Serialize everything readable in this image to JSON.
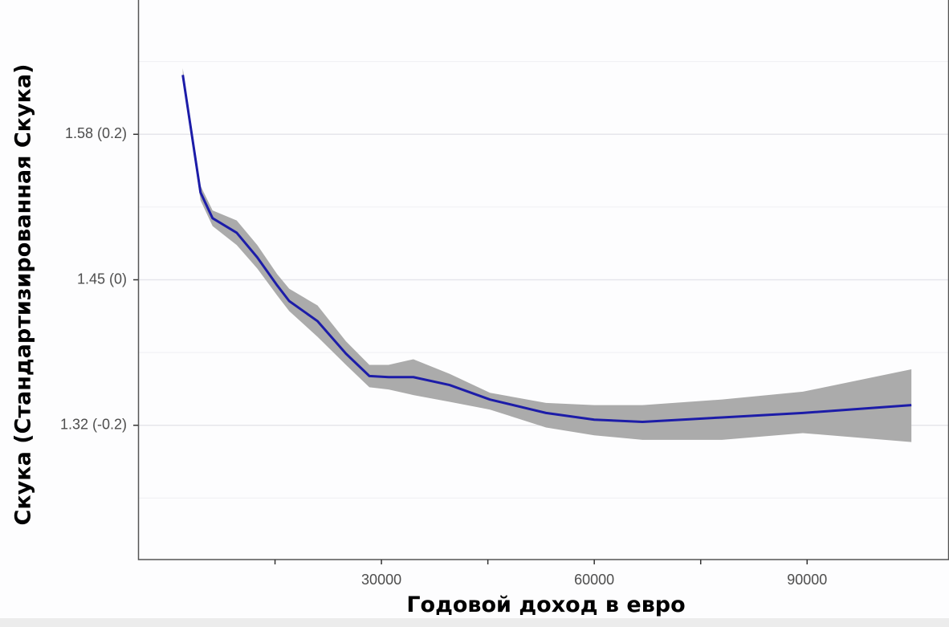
{
  "chart_data": {
    "type": "line",
    "x_label": "Годовой доход в евро",
    "y_label": "Скука (Стандартизированная Скука)",
    "x": [
      2000,
      4500,
      6200,
      9600,
      12500,
      15300,
      17000,
      21000,
      25000,
      28300,
      31000,
      34500,
      39600,
      45300,
      53200,
      60000,
      66800,
      78000,
      89400,
      104700
    ],
    "series": [
      {
        "color": "#1c1ca8",
        "band_color": "#ababab",
        "values": [
          1.633,
          1.528,
          1.505,
          1.492,
          1.47,
          1.445,
          1.431,
          1.413,
          1.384,
          1.364,
          1.363,
          1.363,
          1.356,
          1.343,
          1.331,
          1.325,
          1.323,
          1.327,
          1.331,
          1.338
        ],
        "upper": [
          1.639,
          1.534,
          1.512,
          1.503,
          1.481,
          1.455,
          1.442,
          1.427,
          1.395,
          1.374,
          1.374,
          1.379,
          1.366,
          1.349,
          1.34,
          1.338,
          1.338,
          1.343,
          1.35,
          1.37
        ],
        "lower": [
          1.628,
          1.521,
          1.498,
          1.481,
          1.46,
          1.436,
          1.422,
          1.399,
          1.374,
          1.354,
          1.352,
          1.347,
          1.341,
          1.334,
          1.318,
          1.311,
          1.307,
          1.307,
          1.313,
          1.305
        ]
      }
    ],
    "xlim": [
      -4300,
      110000
    ],
    "ylim": [
      1.2,
      1.7
    ],
    "xticks": [
      30000,
      60000,
      90000
    ],
    "x_minor_ticks": [
      15000,
      45000,
      75000
    ],
    "yticks": [
      {
        "value": 1.58,
        "label": "1.58 (0.2)"
      },
      {
        "value": 1.45,
        "label": "1.45 (0)"
      },
      {
        "value": 1.32,
        "label": "1.32 (-0.2)"
      }
    ],
    "y_minor_ticks": [
      1.645,
      1.515,
      1.385,
      1.255
    ],
    "grid": true
  }
}
